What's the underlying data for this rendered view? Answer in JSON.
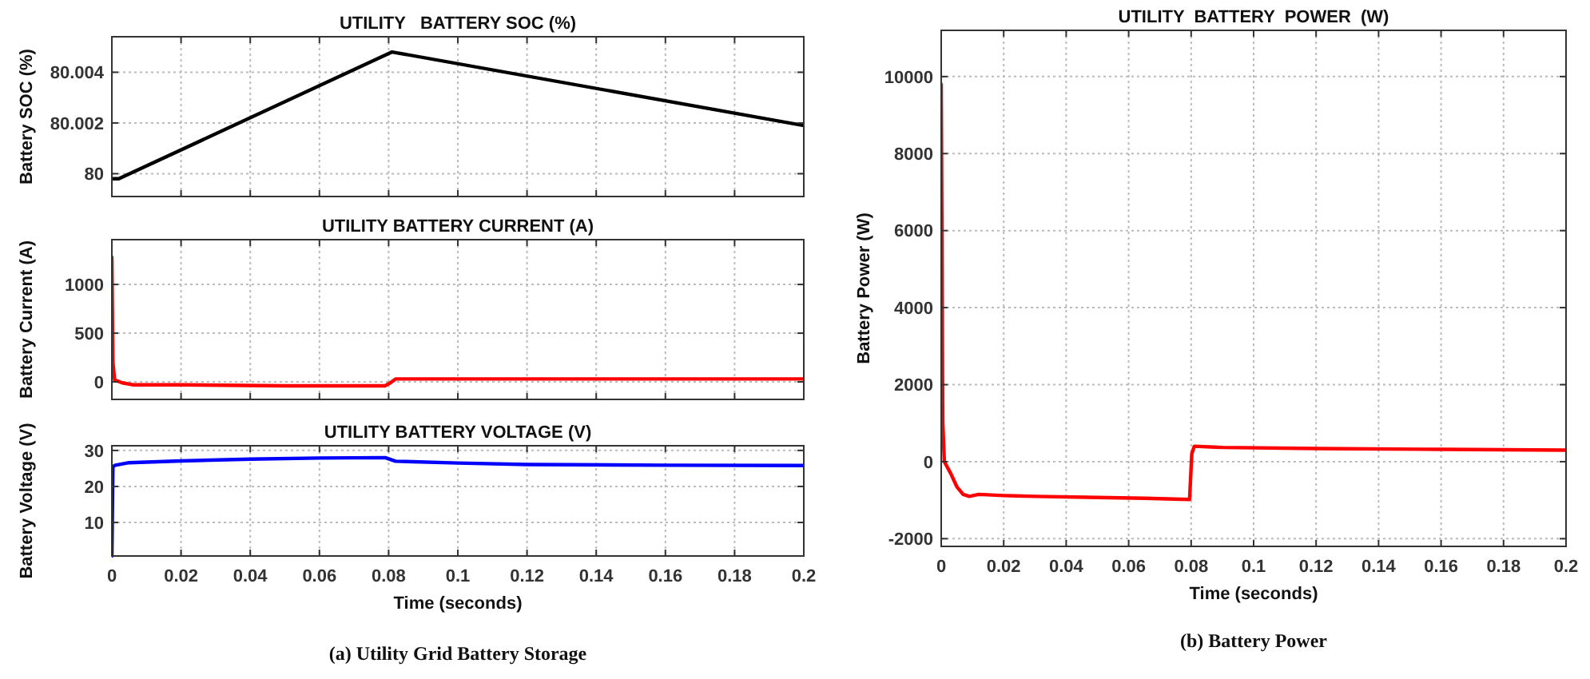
{
  "chart_data": [
    {
      "type": "line",
      "title": "UTILITY   BATTERY SOC (%)",
      "ylabel": "Battery SOC (%)",
      "xlim": [
        0,
        0.2
      ],
      "xticks": [
        0,
        0.02,
        0.04,
        0.06,
        0.08,
        0.1,
        0.12,
        0.14,
        0.16,
        0.18,
        0.2
      ],
      "ylim": [
        79.9991,
        80.0054
      ],
      "yticks": [
        80,
        80.002,
        80.004
      ],
      "grid": true,
      "tick_labels": "y",
      "series": [
        {
          "color": "#000000",
          "x": [
            0,
            0.002,
            0.081,
            0.2
          ],
          "values": [
            79.9998,
            79.9998,
            80.0048,
            80.0019
          ]
        }
      ]
    },
    {
      "type": "line",
      "title": "UTILITY BATTERY CURRENT (A)",
      "ylabel": "Battery Current (A)",
      "xlim": [
        0,
        0.2
      ],
      "xticks": [
        0,
        0.02,
        0.04,
        0.06,
        0.08,
        0.1,
        0.12,
        0.14,
        0.16,
        0.18,
        0.2
      ],
      "ylim": [
        -180,
        1460
      ],
      "yticks": [
        0,
        500,
        1000
      ],
      "grid": true,
      "tick_labels": "y",
      "series": [
        {
          "color": "#ff0000",
          "x": [
            0,
            0.0003,
            0.0008,
            0.003,
            0.006,
            0.02,
            0.05,
            0.079,
            0.0805,
            0.082,
            0.1,
            0.15,
            0.2
          ],
          "values": [
            1280,
            200,
            20,
            -10,
            -30,
            -30,
            -40,
            -40,
            -10,
            30,
            30,
            30,
            30
          ]
        }
      ]
    },
    {
      "type": "line",
      "title": "UTILITY BATTERY VOLTAGE (V)",
      "ylabel": "Battery Voltage (V)",
      "xlabel": "Time (seconds)",
      "xlim": [
        0,
        0.2
      ],
      "xticks": [
        0,
        0.02,
        0.04,
        0.06,
        0.08,
        0.1,
        0.12,
        0.14,
        0.16,
        0.18,
        0.2
      ],
      "ylim": [
        0.7,
        31.3
      ],
      "yticks": [
        10,
        20,
        30
      ],
      "grid": true,
      "annotations": [
        "(a) Utility Grid Battery Storage"
      ],
      "series": [
        {
          "color": "#0000ff",
          "x": [
            0,
            0.0003,
            0.001,
            0.005,
            0.02,
            0.04,
            0.06,
            0.079,
            0.0805,
            0.082,
            0.1,
            0.12,
            0.16,
            0.2
          ],
          "values": [
            0.7,
            25.5,
            25.9,
            26.6,
            27.1,
            27.6,
            27.9,
            28,
            27.5,
            27,
            26.5,
            26.1,
            25.9,
            25.8
          ]
        }
      ]
    },
    {
      "type": "line",
      "title": "UTILITY  BATTERY  POWER  (W)",
      "ylabel": "Battery Power (W)",
      "xlabel": "Time (seconds)",
      "xlim": [
        0,
        0.2
      ],
      "xticks": [
        0,
        0.02,
        0.04,
        0.06,
        0.08,
        0.1,
        0.12,
        0.14,
        0.16,
        0.18,
        0.2
      ],
      "ylim": [
        -2200,
        11200
      ],
      "yticks": [
        -2000,
        0,
        2000,
        4000,
        6000,
        8000,
        10000
      ],
      "grid": true,
      "annotations": [
        "(b) Battery Power"
      ],
      "series": [
        {
          "color": "#ff0000",
          "x": [
            0,
            0.0005,
            0.001,
            0.003,
            0.005,
            0.007,
            0.009,
            0.012,
            0.02,
            0.03,
            0.05,
            0.065,
            0.0795,
            0.0802,
            0.081,
            0.09,
            0.12,
            0.16,
            0.2
          ],
          "values": [
            9800,
            1000,
            0,
            -300,
            -650,
            -850,
            -900,
            -850,
            -880,
            -900,
            -930,
            -950,
            -980,
            200,
            400,
            370,
            340,
            320,
            300
          ]
        }
      ]
    }
  ]
}
